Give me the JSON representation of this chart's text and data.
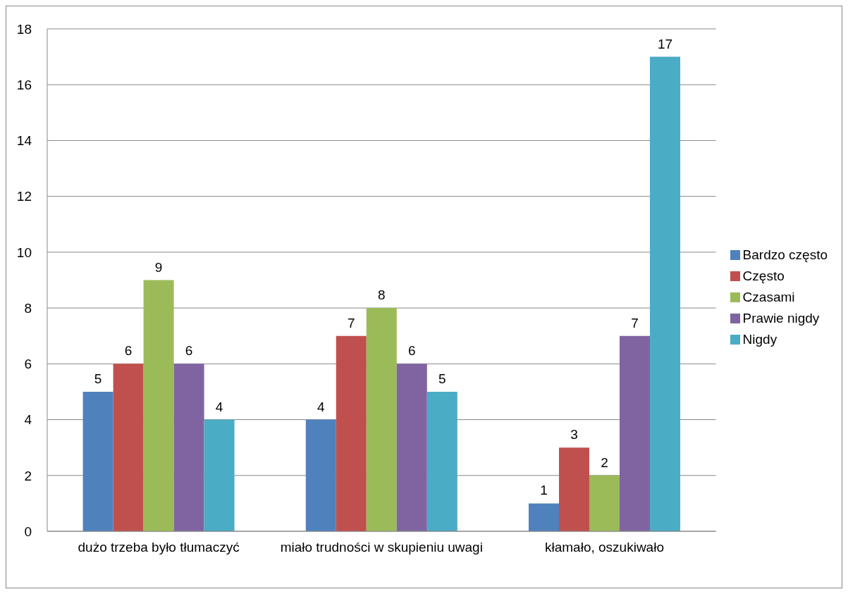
{
  "chart_data": {
    "type": "bar",
    "categories": [
      "dużo trzeba było tłumaczyć",
      "miało trudności w skupieniu uwagi",
      "kłamało, oszukiwało"
    ],
    "series": [
      {
        "name": "Bardzo często",
        "color": "#4f81bd",
        "values": [
          5,
          4,
          1
        ]
      },
      {
        "name": "Często",
        "color": "#c0504d",
        "values": [
          6,
          7,
          3
        ]
      },
      {
        "name": "Czasami",
        "color": "#9bbb59",
        "values": [
          9,
          8,
          2
        ]
      },
      {
        "name": "Prawie nigdy",
        "color": "#8064a2",
        "values": [
          6,
          6,
          7
        ]
      },
      {
        "name": "Nigdy",
        "color": "#4bacc6",
        "values": [
          4,
          5,
          17
        ]
      }
    ],
    "ylim": [
      0,
      18
    ],
    "yticks": [
      0,
      2,
      4,
      6,
      8,
      10,
      12,
      14,
      16,
      18
    ],
    "grid": "y",
    "legend": "right",
    "data_labels": true
  }
}
